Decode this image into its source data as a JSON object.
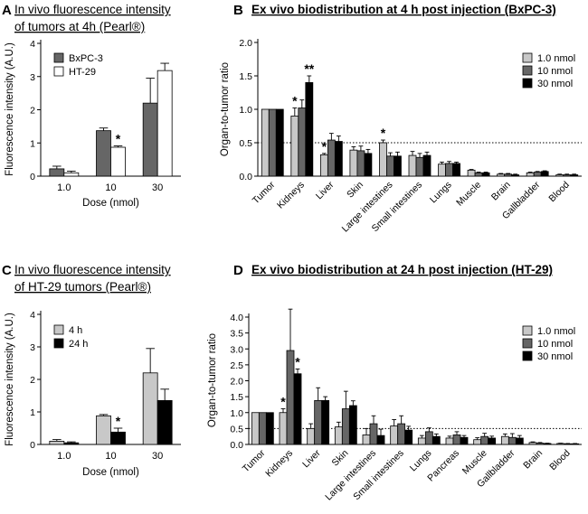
{
  "chart_data": [
    {
      "id": "A",
      "type": "bar",
      "panel_letter": "A",
      "title_lines": [
        "In vivo fluorescence intensity",
        "of tumors at 4h (Pearl®)"
      ],
      "xlabel": "Dose (nmol)",
      "ylabel": "Fluorescence intensity (A.U.)",
      "categories": [
        "1.0",
        "10",
        "30"
      ],
      "ylim": [
        0,
        4
      ],
      "yticks": [
        "0",
        "1",
        "2",
        "3",
        "4"
      ],
      "legend_position": "top-left",
      "series": [
        {
          "name": "BxPC-3",
          "color": "#666666",
          "values": [
            0.22,
            1.37,
            2.2
          ],
          "errors": [
            0.08,
            0.08,
            0.75
          ]
        },
        {
          "name": "HT-29",
          "color": "#ffffff",
          "values": [
            0.1,
            0.87,
            3.18
          ],
          "errors": [
            0.05,
            0.04,
            0.22
          ]
        }
      ],
      "annotations": [
        {
          "category": "10",
          "series": "HT-29",
          "text": "*"
        }
      ]
    },
    {
      "id": "B",
      "type": "bar",
      "panel_letter": "B",
      "title_lines": [
        "Ex vivo biodistribution at 4 h post injection (BxPC-3)"
      ],
      "xlabel": "",
      "ylabel": "Organ-to-tumor ratio",
      "categories": [
        "Tumor",
        "Kidneys",
        "Liver",
        "Skin",
        "Large intestines",
        "Small intestines",
        "Lungs",
        "Muscle",
        "Brain",
        "Gallbladder",
        "Blood"
      ],
      "ylim": [
        0,
        2.0
      ],
      "yticks": [
        "0.0",
        "0.5",
        "1.0",
        "1.5",
        "2.0"
      ],
      "reference_line": 0.5,
      "legend_position": "top-right",
      "series": [
        {
          "name": "1.0 nmol",
          "color": "#c8c8c8",
          "values": [
            1.0,
            0.9,
            0.32,
            0.39,
            0.5,
            0.31,
            0.18,
            0.09,
            0.03,
            0.05,
            0.02
          ],
          "errors": [
            0.0,
            0.12,
            0.02,
            0.05,
            0.04,
            0.06,
            0.03,
            0.01,
            0.01,
            0.01,
            0.01
          ]
        },
        {
          "name": "10 nmol",
          "color": "#666666",
          "values": [
            1.0,
            1.02,
            0.54,
            0.38,
            0.3,
            0.28,
            0.19,
            0.05,
            0.03,
            0.06,
            0.02
          ],
          "errors": [
            0.0,
            0.12,
            0.1,
            0.07,
            0.05,
            0.06,
            0.03,
            0.01,
            0.01,
            0.01,
            0.01
          ]
        },
        {
          "name": "30 nmol",
          "color": "#000000",
          "values": [
            1.0,
            1.4,
            0.52,
            0.34,
            0.3,
            0.31,
            0.19,
            0.05,
            0.02,
            0.07,
            0.02
          ],
          "errors": [
            0.0,
            0.1,
            0.08,
            0.06,
            0.06,
            0.05,
            0.02,
            0.01,
            0.01,
            0.01,
            0.01
          ]
        }
      ],
      "annotations": [
        {
          "category": "Kidneys",
          "series": "1.0 nmol",
          "text": "*"
        },
        {
          "category": "Kidneys",
          "series": "30 nmol",
          "text": "**"
        },
        {
          "category": "Liver",
          "series": "1.0 nmol",
          "text": "*"
        },
        {
          "category": "Large intestines",
          "series": "1.0 nmol",
          "text": "*"
        }
      ]
    },
    {
      "id": "C",
      "type": "bar",
      "panel_letter": "C",
      "title_lines": [
        "In vivo fluorescence intensity",
        "of HT-29 tumors (Pearl®)"
      ],
      "xlabel": "Dose (nmol)",
      "ylabel": "Fluorescence intensity (A.U.)",
      "categories": [
        "1.0",
        "10",
        "30"
      ],
      "ylim": [
        0,
        4
      ],
      "yticks": [
        "0",
        "1",
        "2",
        "3",
        "4"
      ],
      "legend_position": "top-left",
      "series": [
        {
          "name": "4 h",
          "color": "#c8c8c8",
          "values": [
            0.1,
            0.88,
            2.2
          ],
          "errors": [
            0.05,
            0.04,
            0.75
          ]
        },
        {
          "name": "24 h",
          "color": "#000000",
          "values": [
            0.05,
            0.38,
            1.35
          ],
          "errors": [
            0.03,
            0.12,
            0.35
          ]
        }
      ],
      "annotations": [
        {
          "category": "10",
          "series": "24 h",
          "text": "*"
        }
      ]
    },
    {
      "id": "D",
      "type": "bar",
      "panel_letter": "D",
      "title_lines": [
        "Ex vivo biodistribution at 24 h post injection (HT-29)"
      ],
      "xlabel": "",
      "ylabel": "Organ-to-tumor ratio",
      "categories": [
        "Tumor",
        "Kidneys",
        "Liver",
        "Skin",
        "Large intestines",
        "Small intestines",
        "Lungs",
        "Pancreas",
        "Muscle",
        "Gallbladder",
        "Brain",
        "Blood"
      ],
      "ylim": [
        0,
        4.0
      ],
      "yticks": [
        "0.0",
        "0.5",
        "1.0",
        "1.5",
        "2.0",
        "2.5",
        "3.0",
        "3.5",
        "4.0"
      ],
      "reference_line": 0.5,
      "legend_position": "top-right",
      "series": [
        {
          "name": "1.0 nmol",
          "color": "#c8c8c8",
          "values": [
            1.0,
            1.0,
            0.5,
            0.55,
            0.3,
            0.58,
            0.2,
            0.2,
            0.15,
            0.25,
            0.06,
            0.03
          ],
          "errors": [
            0.0,
            0.12,
            0.15,
            0.15,
            0.2,
            0.2,
            0.08,
            0.06,
            0.06,
            0.08,
            0.02,
            0.01
          ]
        },
        {
          "name": "10 nmol",
          "color": "#666666",
          "values": [
            1.0,
            2.95,
            1.38,
            1.12,
            0.65,
            0.65,
            0.4,
            0.3,
            0.25,
            0.22,
            0.04,
            0.02
          ],
          "errors": [
            0.0,
            1.3,
            0.4,
            0.55,
            0.25,
            0.25,
            0.12,
            0.1,
            0.1,
            0.12,
            0.02,
            0.01
          ]
        },
        {
          "name": "30 nmol",
          "color": "#000000",
          "values": [
            1.0,
            2.22,
            1.38,
            1.22,
            0.28,
            0.45,
            0.25,
            0.22,
            0.2,
            0.2,
            0.03,
            0.02
          ],
          "errors": [
            0.0,
            0.15,
            0.12,
            0.15,
            0.2,
            0.12,
            0.08,
            0.06,
            0.06,
            0.08,
            0.01,
            0.01
          ]
        }
      ],
      "annotations": [
        {
          "category": "Kidneys",
          "series": "1.0 nmol",
          "text": "*"
        },
        {
          "category": "Kidneys",
          "series": "30 nmol",
          "text": "*"
        }
      ]
    }
  ]
}
